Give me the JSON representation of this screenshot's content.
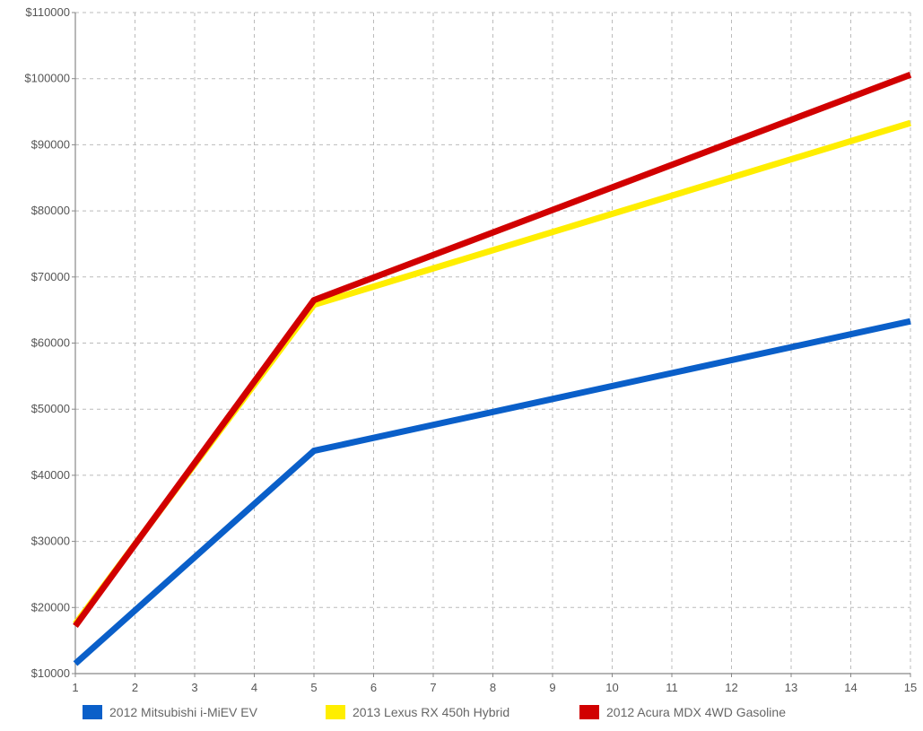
{
  "chart_data": {
    "type": "line",
    "x": [
      1,
      5,
      15
    ],
    "xlim": [
      1,
      15
    ],
    "x_ticks": [
      "1",
      "2",
      "3",
      "4",
      "5",
      "6",
      "7",
      "8",
      "9",
      "10",
      "11",
      "12",
      "13",
      "14",
      "15"
    ],
    "ylim": [
      10000,
      110000
    ],
    "y_ticks": [
      "$10000",
      "$20000",
      "$30000",
      "$40000",
      "$50000",
      "$60000",
      "$70000",
      "$80000",
      "$90000",
      "$100000",
      "$110000"
    ],
    "title": "",
    "xlabel": "",
    "ylabel": "",
    "grid": true,
    "legend_position": "bottom",
    "series": [
      {
        "name": "2012 Mitsubishi i-MiEV EV",
        "color": "#0a5fc9",
        "values": [
          11500,
          43700,
          63300
        ]
      },
      {
        "name": "2013 Lexus RX 450h Hybrid",
        "color": "#ffee00",
        "values": [
          17500,
          65800,
          93300
        ]
      },
      {
        "name": "2012 Acura MDX 4WD Gasoline",
        "color": "#d10000",
        "values": [
          17200,
          66500,
          100600
        ]
      }
    ]
  }
}
